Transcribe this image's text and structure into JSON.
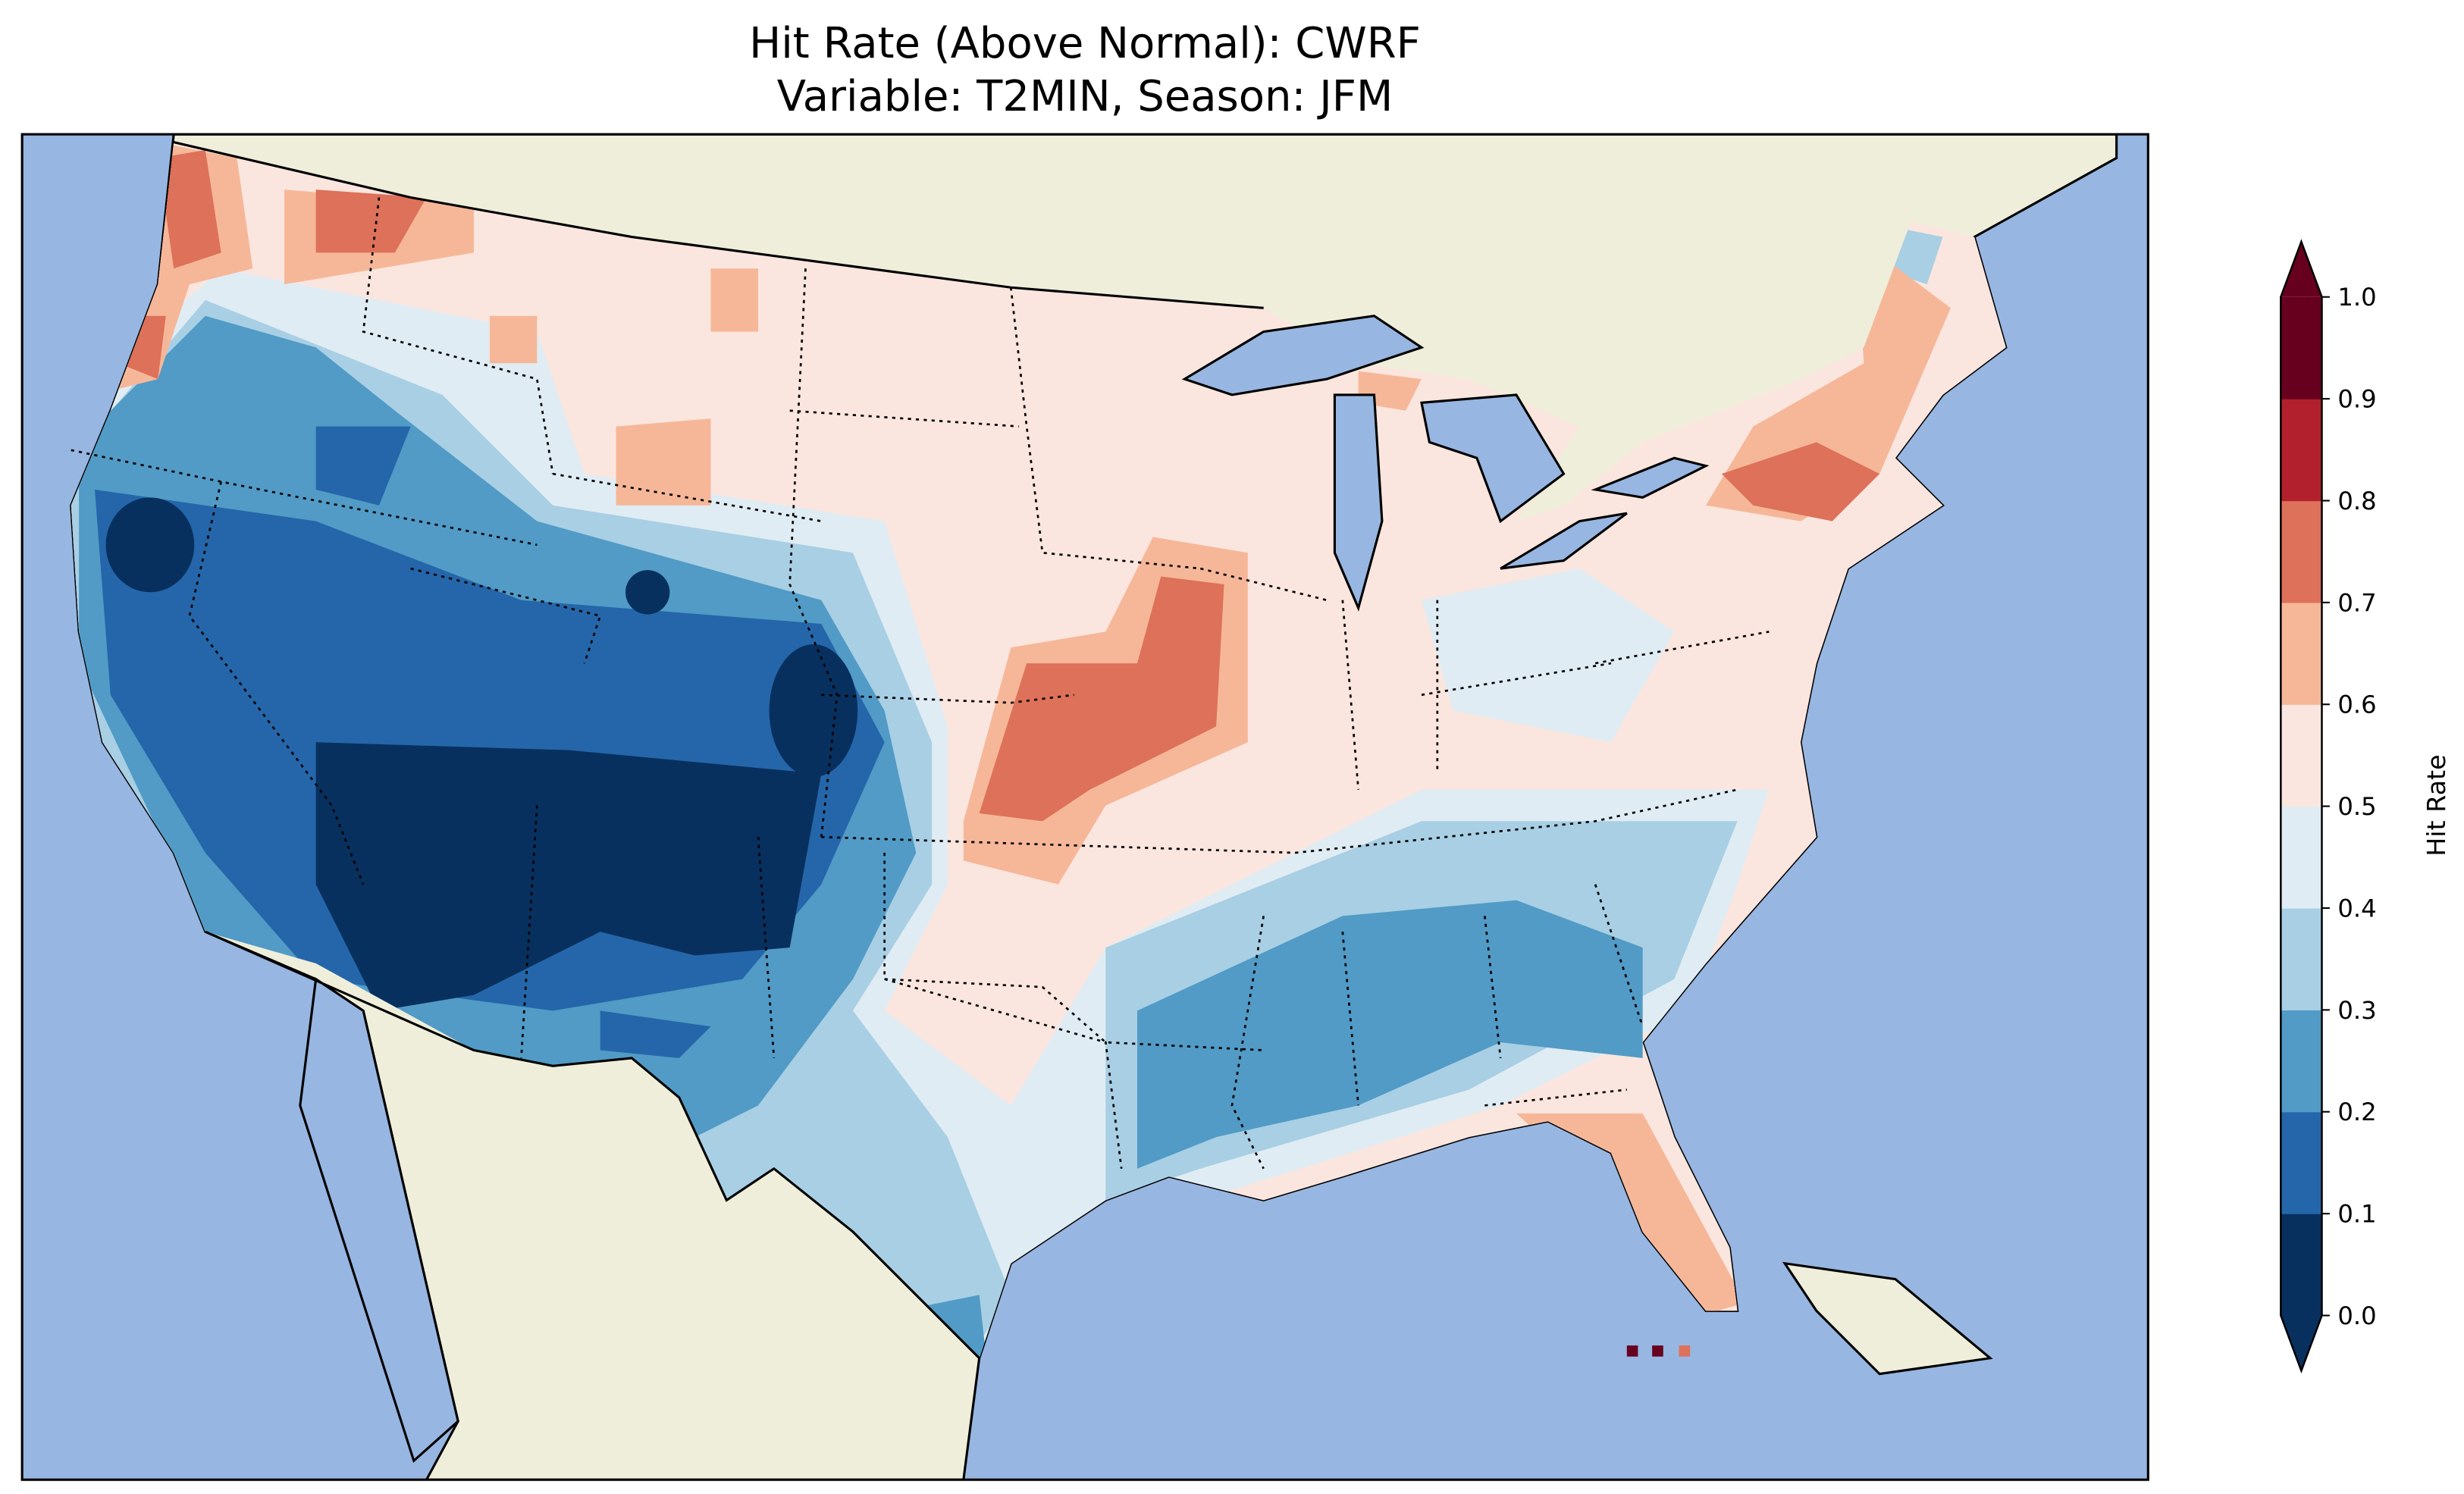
{
  "chart_data": {
    "type": "heatmap",
    "title": "Hit Rate (Above Normal): CWRF",
    "subtitle": "Variable: T2MIN, Season: JFM",
    "map_region": "Contiguous United States",
    "colorbar": {
      "label": "Hit Rate",
      "range": [
        0.0,
        1.0
      ],
      "extend": "both",
      "ticks": [
        "0.0",
        "0.1",
        "0.2",
        "0.3",
        "0.4",
        "0.5",
        "0.6",
        "0.7",
        "0.8",
        "0.9",
        "1.0"
      ],
      "bins": [
        {
          "min": 0.0,
          "max": 0.1,
          "color": "#08305e"
        },
        {
          "min": 0.1,
          "max": 0.2,
          "color": "#2466a9"
        },
        {
          "min": 0.2,
          "max": 0.3,
          "color": "#519bc6"
        },
        {
          "min": 0.3,
          "max": 0.4,
          "color": "#a8cfe4"
        },
        {
          "min": 0.4,
          "max": 0.5,
          "color": "#e0ecf3"
        },
        {
          "min": 0.5,
          "max": 0.6,
          "color": "#fae6de"
        },
        {
          "min": 0.6,
          "max": 0.7,
          "color": "#f6b799"
        },
        {
          "min": 0.7,
          "max": 0.8,
          "color": "#dd7159"
        },
        {
          "min": 0.8,
          "max": 0.9,
          "color": "#b2202e"
        },
        {
          "min": 0.9,
          "max": 1.0,
          "color": "#67001f"
        }
      ]
    },
    "colors": {
      "ocean": "#97b6e1",
      "land": "#efeedb"
    }
  }
}
